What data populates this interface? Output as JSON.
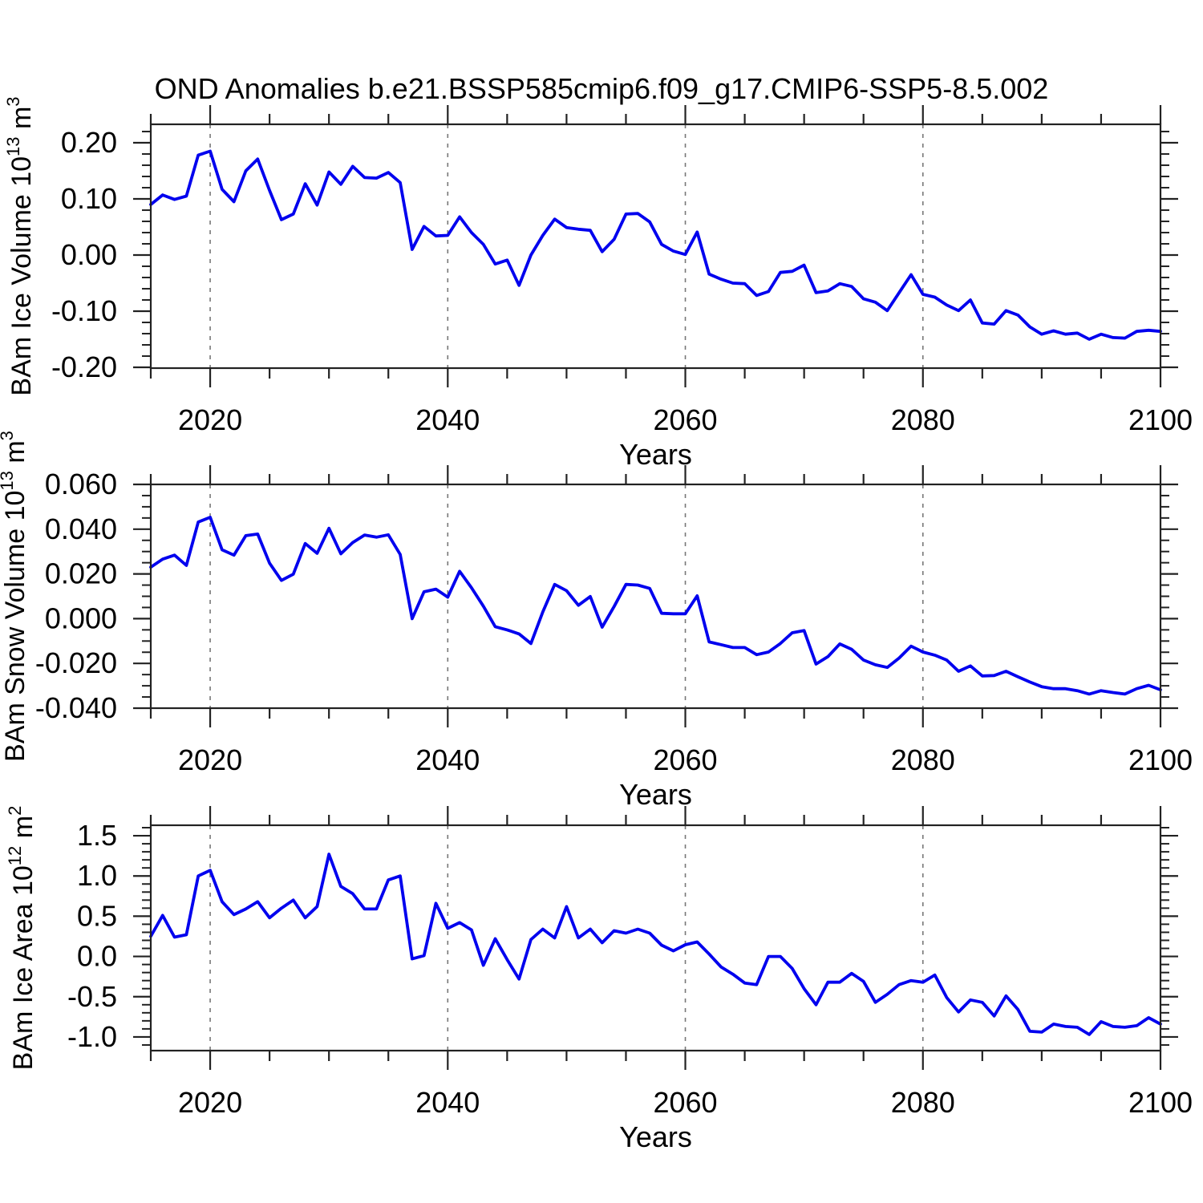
{
  "title": "OND Anomalies b.e21.BSSP585cmip6.f09_g17.CMIP6-SSP5-8.5.002",
  "colors": {
    "line": "#0000EE",
    "frame": "#222222",
    "grid": "#777777",
    "text": "#000000",
    "background": "#FFFFFF"
  },
  "x_axis": {
    "label": "Years",
    "range": [
      2015,
      2100
    ],
    "major_tick_values": [
      2020,
      2040,
      2060,
      2080,
      2100
    ],
    "major_tick_labels": [
      "2020",
      "2040",
      "2060",
      "2080",
      "2100"
    ],
    "minor_step": 5,
    "gridlines_at": [
      2020,
      2040,
      2060,
      2080
    ]
  },
  "chart_data": {
    "type": "line",
    "title": "OND Anomalies b.e21.BSSP585cmip6.f09_g17.CMIP6-SSP5-8.5.002",
    "xlabel": "Years",
    "x_years": [
      2015,
      2016,
      2017,
      2018,
      2019,
      2020,
      2021,
      2022,
      2023,
      2024,
      2025,
      2026,
      2027,
      2028,
      2029,
      2030,
      2031,
      2032,
      2033,
      2034,
      2035,
      2036,
      2037,
      2038,
      2039,
      2040,
      2041,
      2042,
      2043,
      2044,
      2045,
      2046,
      2047,
      2048,
      2049,
      2050,
      2051,
      2052,
      2053,
      2054,
      2055,
      2056,
      2057,
      2058,
      2059,
      2060,
      2061,
      2062,
      2063,
      2064,
      2065,
      2066,
      2067,
      2068,
      2069,
      2070,
      2071,
      2072,
      2073,
      2074,
      2075,
      2076,
      2077,
      2078,
      2079,
      2080,
      2081,
      2082,
      2083,
      2084,
      2085,
      2086,
      2087,
      2088,
      2089,
      2090,
      2091,
      2092,
      2093,
      2094,
      2095,
      2096,
      2097,
      2098,
      2099,
      2100
    ],
    "panels": [
      {
        "name": "ice-volume",
        "ylabel_text": "BAm Ice Volume 10^13 m^3",
        "ylabel_parts": [
          {
            "t": "BAm Ice Volume 10"
          },
          {
            "sup": "13"
          },
          {
            "t": " m"
          },
          {
            "sup": "3"
          }
        ],
        "ylim": [
          -0.2014,
          0.2329
        ],
        "ytick_values": [
          0.2,
          0.1,
          0.0,
          -0.1,
          -0.2
        ],
        "ytick_labels": [
          "0.20",
          "0.10",
          "0.00",
          "-0.10",
          "-0.20"
        ],
        "yminor_step": 0.02,
        "values": [
          0.09,
          0.107,
          0.099,
          0.105,
          0.178,
          0.185,
          0.117,
          0.095,
          0.15,
          0.171,
          0.115,
          0.063,
          0.073,
          0.127,
          0.089,
          0.148,
          0.126,
          0.158,
          0.138,
          0.137,
          0.147,
          0.129,
          0.01,
          0.051,
          0.034,
          0.035,
          0.068,
          0.04,
          0.019,
          -0.016,
          -0.009,
          -0.054,
          0.0,
          0.035,
          0.064,
          0.049,
          0.046,
          0.044,
          0.006,
          0.028,
          0.073,
          0.074,
          0.059,
          0.019,
          0.007,
          0.001,
          0.041,
          -0.034,
          -0.043,
          -0.05,
          -0.051,
          -0.072,
          -0.065,
          -0.031,
          -0.029,
          -0.018,
          -0.067,
          -0.064,
          -0.051,
          -0.056,
          -0.078,
          -0.084,
          -0.099,
          -0.067,
          -0.035,
          -0.07,
          -0.075,
          -0.089,
          -0.099,
          -0.08,
          -0.121,
          -0.123,
          -0.099,
          -0.107,
          -0.128,
          -0.141,
          -0.135,
          -0.141,
          -0.139,
          -0.15,
          -0.141,
          -0.147,
          -0.148,
          -0.136,
          -0.134,
          -0.136
        ]
      },
      {
        "name": "snow-volume",
        "ylabel_text": "BAm Snow Volume 10^13 m^3",
        "ylabel_parts": [
          {
            "t": "BAm Snow Volume 10"
          },
          {
            "sup": "13"
          },
          {
            "t": " m"
          },
          {
            "sup": "3"
          }
        ],
        "ylim": [
          -0.04,
          0.06
        ],
        "ytick_values": [
          0.06,
          0.04,
          0.02,
          0.0,
          -0.02,
          -0.04
        ],
        "ytick_labels": [
          "0.060",
          "0.040",
          "0.020",
          "0.000",
          "-0.020",
          "-0.040"
        ],
        "yminor_step": 0.005,
        "values": [
          0.023,
          0.0266,
          0.0284,
          0.0238,
          0.0432,
          0.0453,
          0.0308,
          0.0284,
          0.0371,
          0.0378,
          0.0248,
          0.0171,
          0.0199,
          0.0336,
          0.0292,
          0.0404,
          0.029,
          0.034,
          0.0374,
          0.0364,
          0.0375,
          0.0287,
          0.0,
          0.012,
          0.0132,
          0.0096,
          0.0212,
          0.0138,
          0.0056,
          -0.0036,
          -0.005,
          -0.0068,
          -0.0111,
          0.003,
          0.0153,
          0.0125,
          0.006,
          0.0099,
          -0.0038,
          0.0054,
          0.0153,
          0.015,
          0.0135,
          0.0024,
          0.0022,
          0.0022,
          0.0102,
          -0.0104,
          -0.0116,
          -0.0129,
          -0.0129,
          -0.0161,
          -0.0149,
          -0.0111,
          -0.0063,
          -0.0053,
          -0.0203,
          -0.017,
          -0.0113,
          -0.0137,
          -0.0185,
          -0.0206,
          -0.0218,
          -0.0176,
          -0.0123,
          -0.0149,
          -0.0163,
          -0.0185,
          -0.0235,
          -0.0211,
          -0.0256,
          -0.0254,
          -0.0235,
          -0.026,
          -0.0283,
          -0.0304,
          -0.0313,
          -0.0313,
          -0.0322,
          -0.0337,
          -0.0322,
          -0.033,
          -0.0337,
          -0.0313,
          -0.0298,
          -0.0318
        ]
      },
      {
        "name": "ice-area",
        "ylabel_text": "BAm Ice Area 10^12 m^2",
        "ylabel_parts": [
          {
            "t": "BAm Ice Area 10"
          },
          {
            "sup": "12"
          },
          {
            "t": " m"
          },
          {
            "sup": "2"
          }
        ],
        "ylim": [
          -1.17,
          1.63
        ],
        "ytick_values": [
          1.5,
          1.0,
          0.5,
          0.0,
          -0.5,
          -1.0
        ],
        "ytick_labels": [
          "1.5",
          "1.0",
          "0.5",
          "0.0",
          "-0.5",
          "-1.0"
        ],
        "yminor_step": 0.1,
        "values": [
          0.25,
          0.51,
          0.24,
          0.27,
          1.0,
          1.07,
          0.68,
          0.52,
          0.59,
          0.68,
          0.48,
          0.6,
          0.7,
          0.48,
          0.62,
          1.27,
          0.87,
          0.78,
          0.59,
          0.59,
          0.95,
          1.0,
          -0.03,
          0.01,
          0.66,
          0.35,
          0.42,
          0.33,
          -0.11,
          0.22,
          -0.04,
          -0.28,
          0.21,
          0.34,
          0.23,
          0.62,
          0.23,
          0.34,
          0.17,
          0.32,
          0.29,
          0.34,
          0.29,
          0.14,
          0.07,
          0.145,
          0.18,
          0.03,
          -0.13,
          -0.22,
          -0.33,
          -0.35,
          0.0,
          0.0,
          -0.15,
          -0.4,
          -0.6,
          -0.32,
          -0.32,
          -0.21,
          -0.31,
          -0.57,
          -0.47,
          -0.35,
          -0.3,
          -0.32,
          -0.23,
          -0.51,
          -0.69,
          -0.54,
          -0.57,
          -0.74,
          -0.49,
          -0.66,
          -0.93,
          -0.94,
          -0.84,
          -0.87,
          -0.88,
          -0.97,
          -0.81,
          -0.87,
          -0.88,
          -0.86,
          -0.76,
          -0.84
        ]
      }
    ]
  }
}
